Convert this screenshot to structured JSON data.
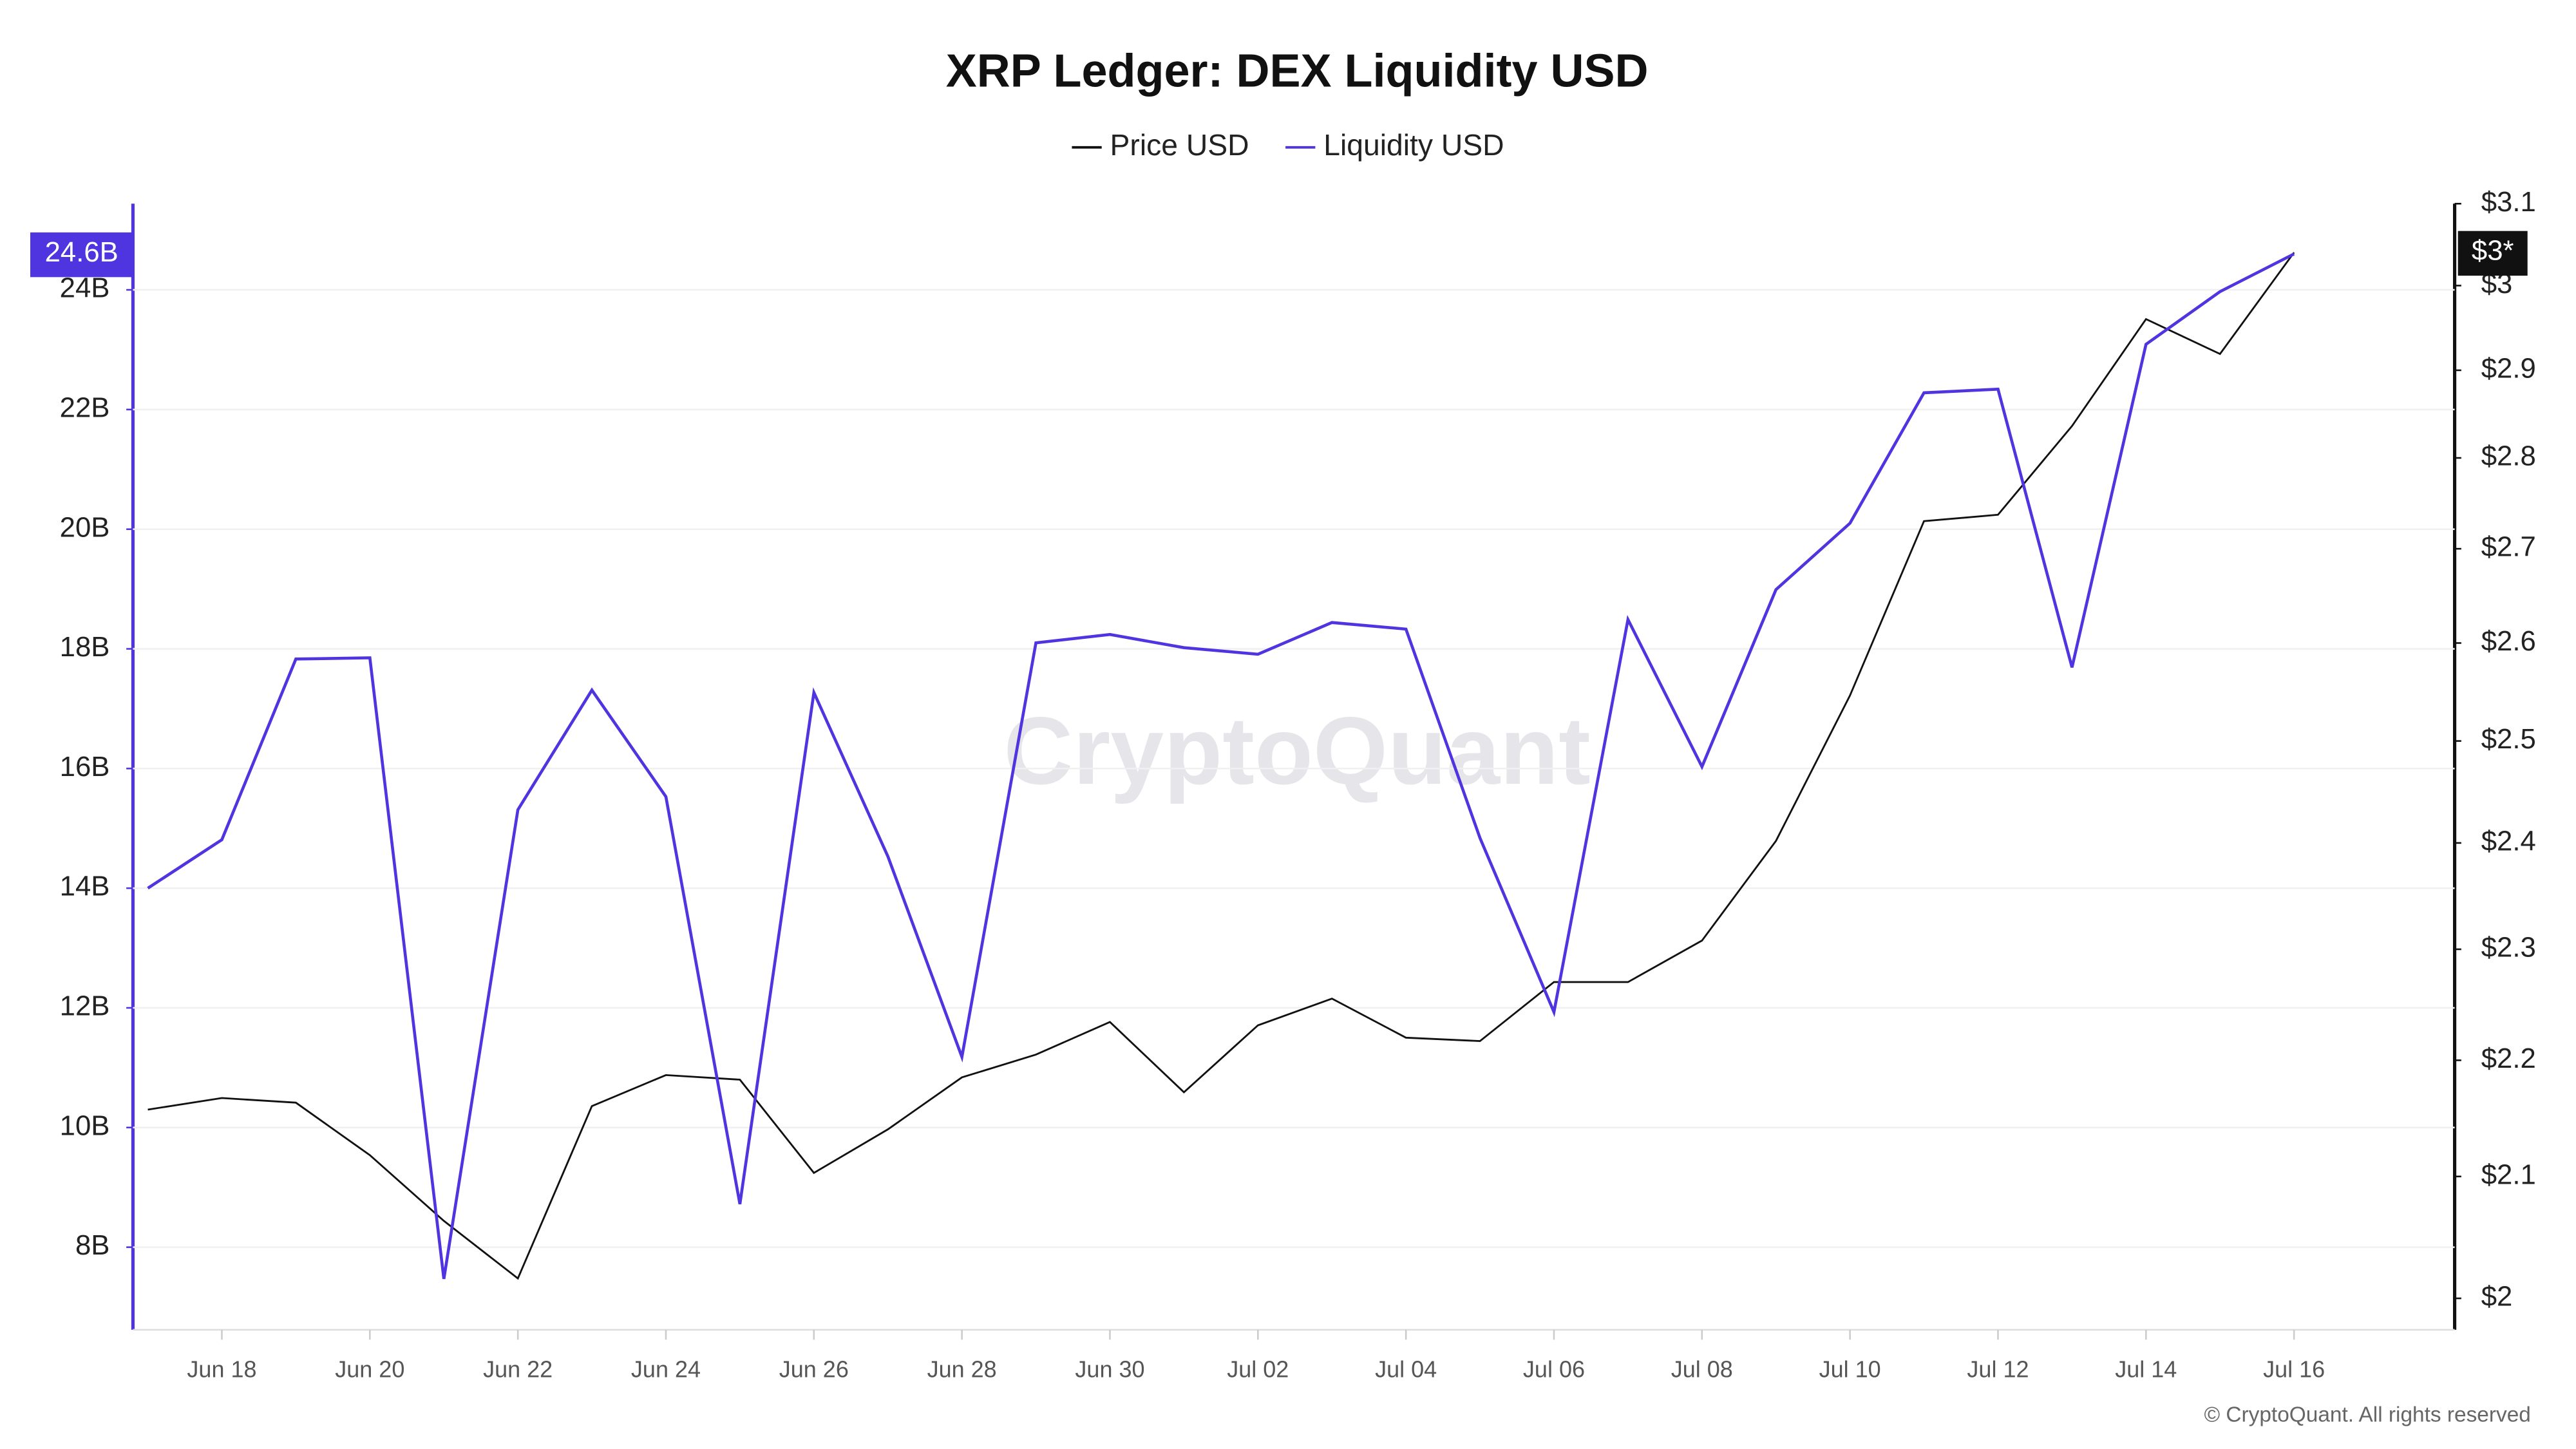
{
  "chart_data": {
    "type": "line",
    "title": "XRP Ledger: DEX Liquidity USD",
    "watermark": "CryptoQuant",
    "footer": "© CryptoQuant. All rights reserved",
    "categories": [
      null,
      "Jun 18",
      null,
      "Jun 20",
      null,
      "Jun 22",
      null,
      "Jun 24",
      null,
      "Jun 26",
      null,
      "Jun 28",
      null,
      "Jun 30",
      null,
      "Jul 02",
      null,
      "Jul 04",
      null,
      "Jul 06",
      null,
      "Jul 08",
      null,
      "Jul 10",
      null,
      "Jul 12",
      null,
      "Jul 14",
      null,
      "Jul 16"
    ],
    "series": [
      {
        "name": "Price USD",
        "color": "#111111",
        "axis": "y2",
        "values": [
          2.157,
          2.167,
          2.163,
          2.118,
          2.063,
          2.016,
          2.16,
          2.187,
          2.183,
          2.103,
          2.14,
          2.185,
          2.205,
          2.234,
          2.172,
          2.231,
          2.255,
          2.22,
          2.217,
          2.27,
          2.27,
          2.308,
          2.402,
          2.546,
          2.73,
          2.737,
          2.836,
          2.96,
          2.919,
          3.04
        ],
        "value_labels": [
          null,
          null,
          null,
          null,
          null,
          null,
          null,
          null,
          null,
          null,
          null,
          null,
          null,
          null,
          null,
          null,
          null,
          null,
          null,
          null,
          null,
          null,
          null,
          null,
          null,
          null,
          null,
          null,
          null,
          "$3*"
        ]
      },
      {
        "name": "Liquidity USD",
        "color": "#4f35e0",
        "values": [
          14.0,
          14.81,
          17.83,
          17.85,
          7.47,
          15.31,
          17.31,
          15.53,
          8.72,
          17.27,
          14.53,
          11.18,
          18.1,
          18.24,
          18.02,
          17.91,
          18.44,
          18.33,
          14.84,
          11.93,
          18.49,
          16.03,
          18.99,
          20.1,
          22.28,
          22.34,
          17.69,
          23.09,
          23.97,
          24.6
        ],
        "value_labels": [
          null,
          null,
          null,
          null,
          null,
          null,
          null,
          null,
          null,
          null,
          null,
          null,
          null,
          null,
          null,
          null,
          null,
          null,
          null,
          null,
          null,
          null,
          null,
          null,
          null,
          null,
          null,
          null,
          null,
          "24.6B"
        ]
      }
    ],
    "ylim": [
      6.62,
      25.44
    ],
    "yticks": [
      {
        "value": 8,
        "label": "8B"
      },
      {
        "value": 10,
        "label": "10B"
      },
      {
        "value": 12,
        "label": "12B"
      },
      {
        "value": 14,
        "label": "14B"
      },
      {
        "value": 16,
        "label": "16B"
      },
      {
        "value": 18,
        "label": "18B"
      },
      {
        "value": 20,
        "label": "20B"
      },
      {
        "value": 22,
        "label": "22B"
      },
      {
        "value": 24,
        "label": "24B"
      }
    ],
    "y2lim": [
      1.975,
      3.1
    ],
    "y2scale": "log",
    "y2ticks": [
      {
        "value": 2,
        "label": "$2"
      },
      {
        "value": 2.1,
        "label": "$2.1"
      },
      {
        "value": 2.2,
        "label": "$2.2"
      },
      {
        "value": 2.3,
        "label": "$2.3"
      },
      {
        "value": 2.4,
        "label": "$2.4"
      },
      {
        "value": 2.5,
        "label": "$2.5"
      },
      {
        "value": 2.6,
        "label": "$2.6"
      },
      {
        "value": 2.7,
        "label": "$2.7"
      },
      {
        "value": 2.8,
        "label": "$2.8"
      },
      {
        "value": 2.9,
        "label": "$2.9"
      },
      {
        "value": 3,
        "label": "$3"
      },
      {
        "value": 3.1,
        "label": "$3.1"
      }
    ],
    "grid": true
  }
}
